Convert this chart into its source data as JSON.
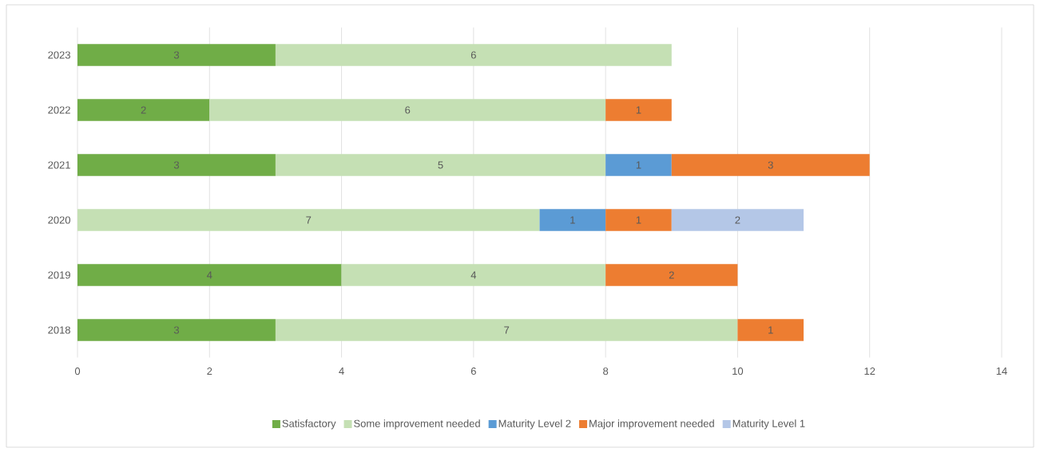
{
  "chart_data": {
    "type": "bar",
    "orientation": "horizontal",
    "stacked": true,
    "data_labels": true,
    "grid": "x",
    "legend": "bottom",
    "categories": [
      "2023",
      "2022",
      "2021",
      "2020",
      "2019",
      "2018"
    ],
    "xlim": [
      0,
      14
    ],
    "xticks": [
      0,
      2,
      4,
      6,
      8,
      10,
      12,
      14
    ],
    "series": [
      {
        "name": "Satisfactory",
        "color": "#70ad47",
        "values": [
          3,
          2,
          3,
          null,
          4,
          3
        ]
      },
      {
        "name": "Some improvement needed",
        "color": "#c5e0b4",
        "values": [
          6,
          6,
          5,
          7,
          4,
          7
        ]
      },
      {
        "name": "Maturity Level 2",
        "color": "#5b9bd5",
        "values": [
          null,
          null,
          1,
          1,
          null,
          null
        ]
      },
      {
        "name": "Major improvement needed",
        "color": "#ed7d31",
        "values": [
          null,
          1,
          3,
          1,
          2,
          1
        ]
      },
      {
        "name": "Maturity Level 1",
        "color": "#b4c7e7",
        "values": [
          null,
          null,
          null,
          2,
          null,
          null
        ]
      }
    ]
  }
}
